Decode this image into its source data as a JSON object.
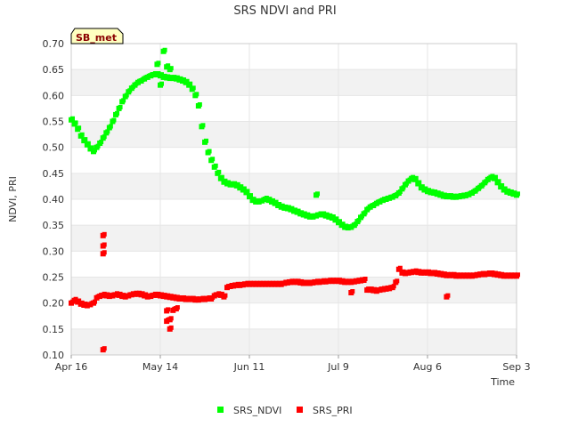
{
  "chart_data": {
    "type": "scatter",
    "title": "SRS NDVI and PRI",
    "xlabel": "Time",
    "ylabel": "NDVI, PRI",
    "badge": "SB_met",
    "ylim": [
      0.1,
      0.7
    ],
    "yticks": [
      "0.10",
      "0.15",
      "0.20",
      "0.25",
      "0.30",
      "0.35",
      "0.40",
      "0.45",
      "0.50",
      "0.55",
      "0.60",
      "0.65",
      "0.70"
    ],
    "xlim_days": [
      0,
      140
    ],
    "xticks": [
      {
        "day": 0,
        "label": "Apr 16"
      },
      {
        "day": 28,
        "label": "May 14"
      },
      {
        "day": 56,
        "label": "Jun 11"
      },
      {
        "day": 84,
        "label": "Jul 9"
      },
      {
        "day": 112,
        "label": "Aug 6"
      },
      {
        "day": 140,
        "label": "Sep 3"
      }
    ],
    "legend": [
      {
        "label": "SRS_NDVI",
        "color": "#00ff00"
      },
      {
        "label": "SRS_PRI",
        "color": "#ff0000"
      }
    ],
    "series": [
      {
        "name": "SRS_NDVI",
        "color": "#00ff00",
        "points": [
          [
            0,
            0.553
          ],
          [
            1,
            0.545
          ],
          [
            2,
            0.535
          ],
          [
            3,
            0.522
          ],
          [
            4,
            0.513
          ],
          [
            5,
            0.505
          ],
          [
            6,
            0.497
          ],
          [
            7,
            0.492
          ],
          [
            8,
            0.5
          ],
          [
            9,
            0.508
          ],
          [
            10,
            0.518
          ],
          [
            11,
            0.528
          ],
          [
            12,
            0.538
          ],
          [
            13,
            0.55
          ],
          [
            14,
            0.563
          ],
          [
            15,
            0.575
          ],
          [
            16,
            0.588
          ],
          [
            17,
            0.598
          ],
          [
            18,
            0.607
          ],
          [
            19,
            0.614
          ],
          [
            20,
            0.62
          ],
          [
            21,
            0.625
          ],
          [
            22,
            0.628
          ],
          [
            23,
            0.632
          ],
          [
            24,
            0.635
          ],
          [
            25,
            0.638
          ],
          [
            26,
            0.64
          ],
          [
            27,
            0.64
          ],
          [
            28,
            0.638
          ],
          [
            29,
            0.635
          ],
          [
            30,
            0.634
          ],
          [
            31,
            0.633
          ],
          [
            32,
            0.633
          ],
          [
            33,
            0.632
          ],
          [
            34,
            0.63
          ],
          [
            35,
            0.628
          ],
          [
            36,
            0.625
          ],
          [
            37,
            0.62
          ],
          [
            38,
            0.612
          ],
          [
            39,
            0.6
          ],
          [
            40,
            0.58
          ],
          [
            41,
            0.54
          ],
          [
            42,
            0.51
          ],
          [
            43,
            0.49
          ],
          [
            44,
            0.475
          ],
          [
            45,
            0.462
          ],
          [
            46,
            0.45
          ],
          [
            47,
            0.44
          ],
          [
            48,
            0.433
          ],
          [
            49,
            0.43
          ],
          [
            50,
            0.428
          ],
          [
            51,
            0.428
          ],
          [
            52,
            0.426
          ],
          [
            53,
            0.422
          ],
          [
            54,
            0.418
          ],
          [
            55,
            0.413
          ],
          [
            56,
            0.405
          ],
          [
            57,
            0.398
          ],
          [
            58,
            0.395
          ],
          [
            59,
            0.395
          ],
          [
            60,
            0.397
          ],
          [
            61,
            0.4
          ],
          [
            62,
            0.398
          ],
          [
            63,
            0.395
          ],
          [
            64,
            0.392
          ],
          [
            65,
            0.388
          ],
          [
            66,
            0.385
          ],
          [
            67,
            0.383
          ],
          [
            68,
            0.382
          ],
          [
            69,
            0.38
          ],
          [
            70,
            0.377
          ],
          [
            71,
            0.375
          ],
          [
            72,
            0.372
          ],
          [
            73,
            0.37
          ],
          [
            74,
            0.368
          ],
          [
            75,
            0.366
          ],
          [
            76,
            0.366
          ],
          [
            77,
            0.368
          ],
          [
            78,
            0.37
          ],
          [
            79,
            0.37
          ],
          [
            80,
            0.368
          ],
          [
            81,
            0.366
          ],
          [
            82,
            0.364
          ],
          [
            83,
            0.36
          ],
          [
            84,
            0.355
          ],
          [
            85,
            0.35
          ],
          [
            86,
            0.346
          ],
          [
            87,
            0.345
          ],
          [
            88,
            0.346
          ],
          [
            89,
            0.35
          ],
          [
            90,
            0.357
          ],
          [
            91,
            0.365
          ],
          [
            92,
            0.372
          ],
          [
            93,
            0.38
          ],
          [
            94,
            0.385
          ],
          [
            95,
            0.388
          ],
          [
            96,
            0.392
          ],
          [
            97,
            0.395
          ],
          [
            98,
            0.398
          ],
          [
            99,
            0.4
          ],
          [
            100,
            0.402
          ],
          [
            101,
            0.404
          ],
          [
            102,
            0.407
          ],
          [
            103,
            0.412
          ],
          [
            104,
            0.42
          ],
          [
            105,
            0.428
          ],
          [
            106,
            0.435
          ],
          [
            107,
            0.44
          ],
          [
            108,
            0.438
          ],
          [
            109,
            0.43
          ],
          [
            110,
            0.422
          ],
          [
            111,
            0.418
          ],
          [
            112,
            0.415
          ],
          [
            113,
            0.413
          ],
          [
            114,
            0.412
          ],
          [
            115,
            0.41
          ],
          [
            116,
            0.408
          ],
          [
            117,
            0.406
          ],
          [
            118,
            0.405
          ],
          [
            119,
            0.405
          ],
          [
            120,
            0.404
          ],
          [
            121,
            0.404
          ],
          [
            122,
            0.405
          ],
          [
            123,
            0.406
          ],
          [
            124,
            0.407
          ],
          [
            125,
            0.409
          ],
          [
            126,
            0.412
          ],
          [
            127,
            0.416
          ],
          [
            128,
            0.421
          ],
          [
            129,
            0.426
          ],
          [
            130,
            0.432
          ],
          [
            131,
            0.438
          ],
          [
            132,
            0.442
          ],
          [
            133,
            0.44
          ],
          [
            134,
            0.432
          ],
          [
            135,
            0.424
          ],
          [
            136,
            0.418
          ],
          [
            137,
            0.414
          ],
          [
            138,
            0.412
          ],
          [
            139,
            0.41
          ],
          [
            140,
            0.408
          ],
          [
            29,
            0.685
          ],
          [
            27,
            0.66
          ],
          [
            30,
            0.655
          ],
          [
            31,
            0.65
          ],
          [
            28,
            0.62
          ],
          [
            77,
            0.408
          ]
        ]
      },
      {
        "name": "SRS_PRI",
        "color": "#ff0000",
        "points": [
          [
            0,
            0.2
          ],
          [
            1,
            0.205
          ],
          [
            2,
            0.202
          ],
          [
            3,
            0.198
          ],
          [
            4,
            0.196
          ],
          [
            5,
            0.195
          ],
          [
            6,
            0.197
          ],
          [
            7,
            0.2
          ],
          [
            8,
            0.21
          ],
          [
            9,
            0.213
          ],
          [
            10,
            0.215
          ],
          [
            11,
            0.214
          ],
          [
            12,
            0.213
          ],
          [
            13,
            0.214
          ],
          [
            14,
            0.216
          ],
          [
            15,
            0.215
          ],
          [
            16,
            0.213
          ],
          [
            17,
            0.212
          ],
          [
            18,
            0.214
          ],
          [
            19,
            0.216
          ],
          [
            20,
            0.217
          ],
          [
            21,
            0.217
          ],
          [
            22,
            0.216
          ],
          [
            23,
            0.214
          ],
          [
            24,
            0.212
          ],
          [
            25,
            0.213
          ],
          [
            26,
            0.215
          ],
          [
            27,
            0.215
          ],
          [
            28,
            0.214
          ],
          [
            29,
            0.213
          ],
          [
            30,
            0.212
          ],
          [
            31,
            0.211
          ],
          [
            32,
            0.21
          ],
          [
            33,
            0.209
          ],
          [
            34,
            0.208
          ],
          [
            35,
            0.208
          ],
          [
            36,
            0.207
          ],
          [
            37,
            0.207
          ],
          [
            38,
            0.207
          ],
          [
            39,
            0.206
          ],
          [
            40,
            0.206
          ],
          [
            41,
            0.207
          ],
          [
            42,
            0.207
          ],
          [
            43,
            0.208
          ],
          [
            44,
            0.208
          ],
          [
            45,
            0.214
          ],
          [
            46,
            0.216
          ],
          [
            47,
            0.215
          ],
          [
            48,
            0.212
          ],
          [
            49,
            0.23
          ],
          [
            50,
            0.232
          ],
          [
            51,
            0.233
          ],
          [
            52,
            0.234
          ],
          [
            53,
            0.234
          ],
          [
            54,
            0.235
          ],
          [
            55,
            0.236
          ],
          [
            56,
            0.236
          ],
          [
            57,
            0.236
          ],
          [
            58,
            0.236
          ],
          [
            59,
            0.236
          ],
          [
            60,
            0.236
          ],
          [
            61,
            0.236
          ],
          [
            62,
            0.236
          ],
          [
            63,
            0.236
          ],
          [
            64,
            0.236
          ],
          [
            65,
            0.236
          ],
          [
            66,
            0.236
          ],
          [
            67,
            0.238
          ],
          [
            68,
            0.239
          ],
          [
            69,
            0.24
          ],
          [
            70,
            0.24
          ],
          [
            71,
            0.24
          ],
          [
            72,
            0.239
          ],
          [
            73,
            0.238
          ],
          [
            74,
            0.238
          ],
          [
            75,
            0.238
          ],
          [
            76,
            0.239
          ],
          [
            77,
            0.24
          ],
          [
            78,
            0.24
          ],
          [
            79,
            0.241
          ],
          [
            80,
            0.241
          ],
          [
            81,
            0.242
          ],
          [
            82,
            0.242
          ],
          [
            83,
            0.242
          ],
          [
            84,
            0.242
          ],
          [
            85,
            0.241
          ],
          [
            86,
            0.24
          ],
          [
            87,
            0.24
          ],
          [
            88,
            0.24
          ],
          [
            89,
            0.241
          ],
          [
            90,
            0.242
          ],
          [
            91,
            0.243
          ],
          [
            92,
            0.244
          ],
          [
            93,
            0.225
          ],
          [
            94,
            0.225
          ],
          [
            95,
            0.224
          ],
          [
            96,
            0.223
          ],
          [
            97,
            0.225
          ],
          [
            98,
            0.226
          ],
          [
            99,
            0.227
          ],
          [
            100,
            0.228
          ],
          [
            101,
            0.23
          ],
          [
            102,
            0.24
          ],
          [
            103,
            0.265
          ],
          [
            104,
            0.258
          ],
          [
            105,
            0.257
          ],
          [
            106,
            0.258
          ],
          [
            107,
            0.259
          ],
          [
            108,
            0.26
          ],
          [
            109,
            0.259
          ],
          [
            110,
            0.258
          ],
          [
            111,
            0.258
          ],
          [
            112,
            0.258
          ],
          [
            113,
            0.257
          ],
          [
            114,
            0.257
          ],
          [
            115,
            0.256
          ],
          [
            116,
            0.255
          ],
          [
            117,
            0.254
          ],
          [
            118,
            0.253
          ],
          [
            119,
            0.253
          ],
          [
            120,
            0.253
          ],
          [
            121,
            0.252
          ],
          [
            122,
            0.252
          ],
          [
            123,
            0.252
          ],
          [
            124,
            0.252
          ],
          [
            125,
            0.252
          ],
          [
            126,
            0.252
          ],
          [
            127,
            0.253
          ],
          [
            128,
            0.254
          ],
          [
            129,
            0.255
          ],
          [
            130,
            0.255
          ],
          [
            131,
            0.256
          ],
          [
            132,
            0.256
          ],
          [
            133,
            0.255
          ],
          [
            134,
            0.254
          ],
          [
            135,
            0.253
          ],
          [
            136,
            0.252
          ],
          [
            137,
            0.252
          ],
          [
            138,
            0.252
          ],
          [
            139,
            0.252
          ],
          [
            140,
            0.252
          ],
          [
            10,
            0.33
          ],
          [
            10,
            0.31
          ],
          [
            10,
            0.295
          ],
          [
            10,
            0.11
          ],
          [
            30,
            0.185
          ],
          [
            30,
            0.165
          ],
          [
            31,
            0.15
          ],
          [
            31,
            0.168
          ],
          [
            32,
            0.186
          ],
          [
            33,
            0.189
          ],
          [
            88,
            0.22
          ],
          [
            118,
            0.212
          ]
        ]
      }
    ]
  }
}
